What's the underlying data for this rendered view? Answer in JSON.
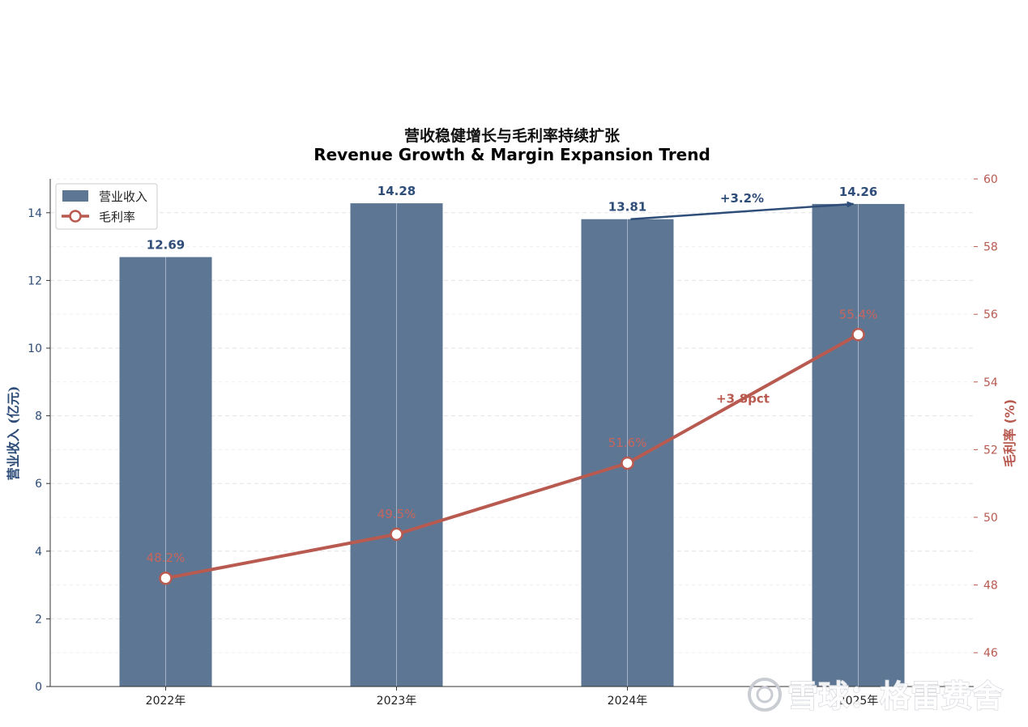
{
  "chart_data": {
    "type": "bar+line",
    "title_cn": "营收稳健增长与毛利率持续扩张",
    "title_en": "Revenue Growth & Margin Expansion Trend",
    "categories": [
      "2022年",
      "2023年",
      "2024年",
      "2025年"
    ],
    "series": [
      {
        "name": "营业收入",
        "type": "bar",
        "axis": "left",
        "values": [
          12.69,
          14.28,
          13.81,
          14.26
        ],
        "labels": [
          "12.69",
          "14.28",
          "13.81",
          "14.26"
        ],
        "color": "#5d7694"
      },
      {
        "name": "毛利率",
        "type": "line",
        "axis": "right",
        "values": [
          48.2,
          49.5,
          51.6,
          55.4
        ],
        "labels": [
          "48.2%",
          "49.5%",
          "51.6%",
          "55.4%"
        ],
        "color": "#b85a50"
      }
    ],
    "y_left": {
      "label": "营业收入 (亿元)",
      "min": 0,
      "max": 15,
      "ticks": [
        0,
        2,
        4,
        6,
        8,
        10,
        12,
        14
      ]
    },
    "y_right": {
      "label": "毛利率 (%)",
      "min": 45,
      "max": 60,
      "ticks": [
        46,
        48,
        50,
        52,
        54,
        56,
        58,
        60
      ]
    },
    "annotations": [
      {
        "text": "+3.2%",
        "kind": "revenue",
        "from_category": 2,
        "to_category": 3
      },
      {
        "text": "+3.8pct",
        "kind": "margin",
        "between": [
          2,
          3
        ]
      }
    ],
    "legend": {
      "position": "top-left",
      "items": [
        "营业收入",
        "毛利率"
      ]
    },
    "grid": true
  },
  "watermark": {
    "text": "雪球：格雷费舍",
    "icon": "xueqiu-logo-icon"
  },
  "colors": {
    "bar": "#5d7694",
    "line": "#b85a50",
    "left_axis": "#2e4d78",
    "right_axis": "#b85a50"
  }
}
